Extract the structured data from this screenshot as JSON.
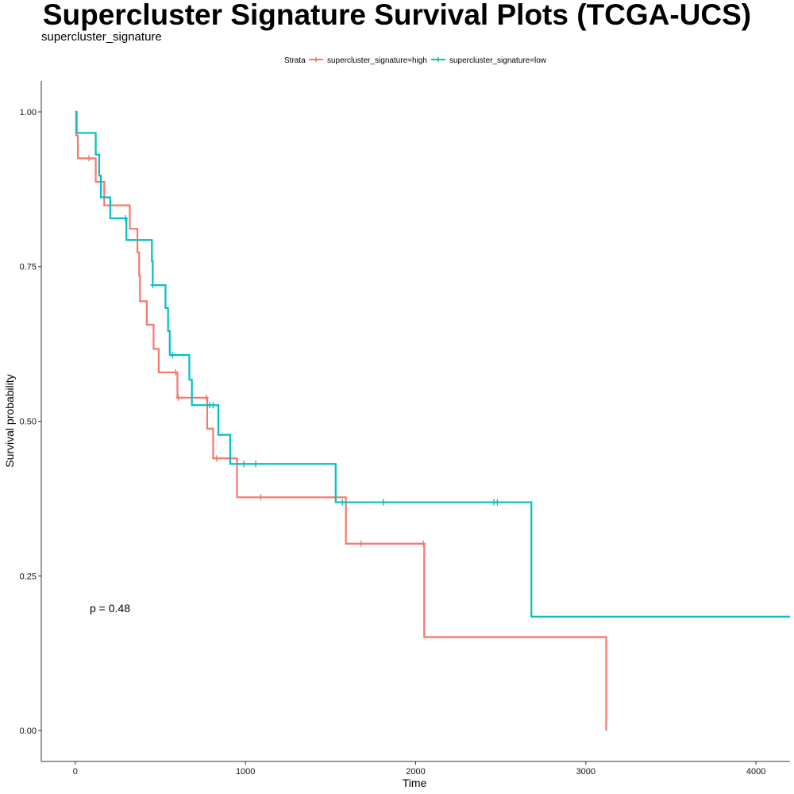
{
  "chart_data": {
    "type": "line",
    "subtype": "kaplan-meier",
    "title": "Supercluster Signature Survival Plots (TCGA-UCS)",
    "subtitle": "supercluster_signature",
    "xlabel": "Time",
    "ylabel": "Survival probability",
    "xlim": [
      -200,
      4200
    ],
    "ylim": [
      -0.05,
      1.05
    ],
    "x_ticks": [
      0,
      1000,
      2000,
      3000,
      4000
    ],
    "x_tick_labels": [
      "0",
      "1000",
      "2000",
      "3000",
      "4000"
    ],
    "y_ticks": [
      0,
      0.25,
      0.5,
      0.75,
      1.0
    ],
    "y_tick_labels": [
      "0.00",
      "0.25",
      "0.50",
      "0.75",
      "1.00"
    ],
    "grid": false,
    "legend": {
      "title": "Strata",
      "position": "top"
    },
    "annotation": "p = 0.48",
    "series": [
      {
        "name": "supercluster_signature=high",
        "color": "#F8766D",
        "steps": [
          [
            0,
            1.0
          ],
          [
            5,
            0.962
          ],
          [
            15,
            0.925
          ],
          [
            120,
            0.887
          ],
          [
            170,
            0.849
          ],
          [
            320,
            0.811
          ],
          [
            365,
            0.773
          ],
          [
            375,
            0.735
          ],
          [
            380,
            0.694
          ],
          [
            420,
            0.656
          ],
          [
            460,
            0.617
          ],
          [
            490,
            0.579
          ],
          [
            600,
            0.538
          ],
          [
            775,
            0.488
          ],
          [
            810,
            0.44
          ],
          [
            950,
            0.377
          ],
          [
            1590,
            0.302
          ],
          [
            2050,
            0.151
          ],
          [
            3120,
            0.0
          ]
        ],
        "end_x": 3120,
        "censor_times": [
          80,
          590,
          605,
          770,
          830,
          1090,
          1680,
          2045
        ]
      },
      {
        "name": "supercluster_signature=low",
        "color": "#00BFC4",
        "steps": [
          [
            0,
            1.0
          ],
          [
            8,
            0.966
          ],
          [
            120,
            0.931
          ],
          [
            140,
            0.897
          ],
          [
            150,
            0.862
          ],
          [
            205,
            0.828
          ],
          [
            300,
            0.793
          ],
          [
            450,
            0.759
          ],
          [
            455,
            0.72
          ],
          [
            530,
            0.683
          ],
          [
            545,
            0.646
          ],
          [
            555,
            0.607
          ],
          [
            670,
            0.567
          ],
          [
            685,
            0.526
          ],
          [
            840,
            0.478
          ],
          [
            910,
            0.431
          ],
          [
            1530,
            0.369
          ],
          [
            2680,
            0.184
          ]
        ],
        "end_x": 4200,
        "censor_times": [
          295,
          455,
          570,
          790,
          810,
          990,
          1060,
          1570,
          1810,
          2460,
          2480
        ]
      }
    ]
  }
}
